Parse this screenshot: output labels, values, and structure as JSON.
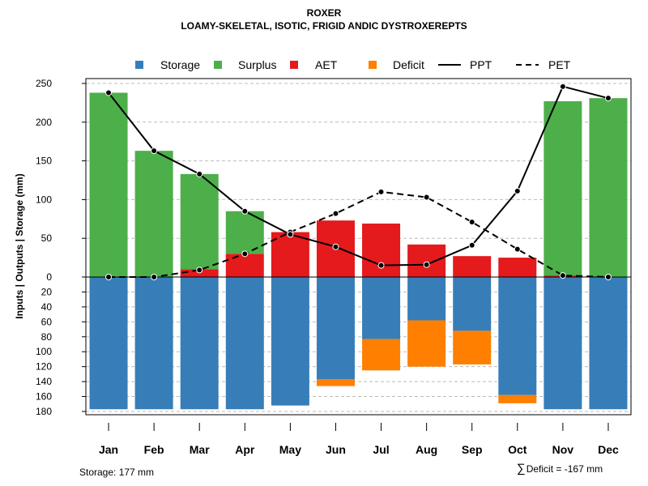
{
  "title": "ROXER",
  "subtitle": "LOAMY-SKELETAL, ISOTIC, FRIGID ANDIC DYSTROXEREPTS",
  "legend": {
    "storage": "Storage",
    "surplus": "Surplus",
    "aet": "AET",
    "deficit": "Deficit",
    "ppt": "PPT",
    "pet": "PET"
  },
  "colors": {
    "storage": "#377EB8",
    "surplus": "#4DAF4A",
    "aet": "#E41A1C",
    "deficit": "#FF7F00",
    "line": "#000000",
    "grid": "#bbbbbb"
  },
  "footer": {
    "storage_text": "Storage: 177 mm",
    "deficit_symbol": "∑",
    "deficit_text": "Deficit = -167 mm"
  },
  "chart_data": {
    "type": "bar",
    "ylabel": "Inputs | Outputs | Storage    (mm)",
    "upper_ticks": [
      0,
      50,
      100,
      150,
      200,
      250
    ],
    "lower_ticks": [
      20,
      40,
      60,
      80,
      100,
      120,
      140,
      160,
      180
    ],
    "upper_range": [
      0,
      250
    ],
    "lower_range": [
      0,
      180
    ],
    "grid": true,
    "categories": [
      "Jan",
      "Feb",
      "Mar",
      "Apr",
      "May",
      "Jun",
      "Jul",
      "Aug",
      "Sep",
      "Oct",
      "Nov",
      "Dec"
    ],
    "series": [
      {
        "name": "AET",
        "values": [
          0,
          0,
          10,
          30,
          58,
          73,
          69,
          42,
          27,
          25,
          2,
          0
        ]
      },
      {
        "name": "Surplus",
        "values": [
          238,
          163,
          123,
          55,
          0,
          0,
          0,
          0,
          0,
          0,
          225,
          231
        ]
      },
      {
        "name": "Storage",
        "values": [
          177,
          177,
          177,
          177,
          172,
          137,
          83,
          58,
          72,
          158,
          177,
          177
        ]
      },
      {
        "name": "Deficit",
        "values": [
          0,
          0,
          0,
          0,
          0,
          9,
          42,
          62,
          45,
          11,
          0,
          0
        ]
      },
      {
        "name": "PPT",
        "values": [
          238,
          163,
          133,
          85,
          55,
          39,
          15,
          16,
          41,
          111,
          246,
          231
        ]
      },
      {
        "name": "PET",
        "values": [
          0,
          0,
          9,
          30,
          58,
          82,
          110,
          103,
          71,
          36,
          2,
          0
        ]
      }
    ]
  }
}
